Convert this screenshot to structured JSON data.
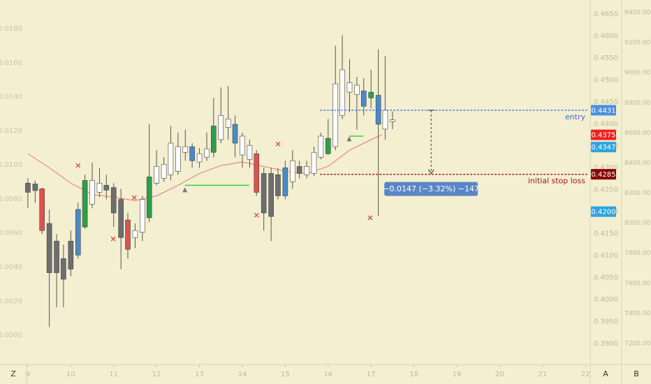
{
  "chart_data": {
    "type": "candlestick",
    "x": [
      9,
      9.17,
      9.33,
      9.5,
      9.67,
      9.83,
      10,
      10.17,
      10.33,
      10.5,
      10.67,
      10.83,
      11,
      11.17,
      11.33,
      11.5,
      11.67,
      11.83,
      12,
      12.17,
      12.33,
      12.5,
      12.67,
      12.83,
      13,
      13.17,
      13.33,
      13.5,
      13.67,
      13.83,
      14,
      14.17,
      14.33,
      14.5,
      14.67,
      14.83,
      15,
      15.17,
      15.33,
      15.5,
      15.67,
      15.83,
      16,
      16.17,
      16.33,
      16.5,
      16.67,
      16.83,
      17,
      17.17,
      17.33,
      17.5
    ],
    "open": [
      0.4265,
      0.4263,
      0.4252,
      0.4173,
      0.4133,
      0.4093,
      0.4133,
      0.4101,
      0.4165,
      0.4217,
      0.4244,
      0.426,
      0.4255,
      0.4228,
      0.4181,
      0.4141,
      0.4153,
      0.4186,
      0.4265,
      0.4276,
      0.4284,
      0.4292,
      0.4335,
      0.4348,
      0.4313,
      0.4324,
      0.4335,
      0.4364,
      0.4392,
      0.4399,
      0.4329,
      0.4319,
      0.4332,
      0.4287,
      0.4287,
      0.4284,
      0.4236,
      0.4268,
      0.4303,
      0.4284,
      0.4287,
      0.4324,
      0.4332,
      0.4348,
      0.4419,
      0.4472,
      0.4467,
      0.4475,
      0.4459,
      0.4465,
      0.4388,
      0.4405
    ],
    "high": [
      0.4276,
      0.4271,
      0.4255,
      0.4205,
      0.4149,
      0.4125,
      0.4157,
      0.422,
      0.4284,
      0.4312,
      0.43,
      0.4284,
      0.4265,
      0.4252,
      0.4197,
      0.4173,
      0.4236,
      0.4399,
      0.434,
      0.4324,
      0.4395,
      0.438,
      0.4387,
      0.4356,
      0.4345,
      0.438,
      0.4459,
      0.4483,
      0.4486,
      0.4419,
      0.438,
      0.4364,
      0.434,
      0.43,
      0.43,
      0.43,
      0.4316,
      0.434,
      0.4316,
      0.4316,
      0.4348,
      0.438,
      0.4411,
      0.4578,
      0.4602,
      0.4547,
      0.4507,
      0.4504,
      0.4523,
      0.457,
      0.4554,
      0.4428
    ],
    "low": [
      0.4208,
      0.422,
      0.4149,
      0.3937,
      0.3982,
      0.3982,
      0.4053,
      0.4093,
      0.4161,
      0.4208,
      0.4233,
      0.4228,
      0.4165,
      0.4069,
      0.4093,
      0.4117,
      0.4133,
      0.4176,
      0.426,
      0.4268,
      0.4271,
      0.4284,
      0.4316,
      0.43,
      0.43,
      0.4316,
      0.4324,
      0.4356,
      0.4364,
      0.4324,
      0.43,
      0.43,
      0.4236,
      0.4157,
      0.4133,
      0.4228,
      0.4228,
      0.4252,
      0.4276,
      0.4276,
      0.4281,
      0.4319,
      0.4329,
      0.434,
      0.4411,
      0.4427,
      0.4387,
      0.4419,
      0.4435,
      0.4189,
      0.4364,
      0.4388
    ],
    "close": [
      0.4244,
      0.4248,
      0.4157,
      0.4061,
      0.4061,
      0.4046,
      0.4069,
      0.4205,
      0.4271,
      0.4271,
      0.4265,
      0.4249,
      0.4197,
      0.4141,
      0.4114,
      0.4157,
      0.4228,
      0.4279,
      0.4303,
      0.4308,
      0.4356,
      0.4348,
      0.4348,
      0.4316,
      0.4332,
      0.4343,
      0.4395,
      0.4419,
      0.4411,
      0.4356,
      0.4372,
      0.4351,
      0.4244,
      0.4197,
      0.4189,
      0.4236,
      0.43,
      0.4316,
      0.4287,
      0.4303,
      0.4335,
      0.4372,
      0.4367,
      0.4491,
      0.4523,
      0.4494,
      0.4488,
      0.444,
      0.4472,
      0.4399,
      0.4431,
      0.4409
    ],
    "candle_colors": [
      "#6e6e6e",
      "#6e6e6e",
      "#d9534f",
      "#6e6e6e",
      "#6e6e6e",
      "#6e6e6e",
      "#6e6e6e",
      "#4a8ac9",
      "#2e9e4b",
      "#ffffff",
      "#ffffff",
      "#6e6e6e",
      "#6e6e6e",
      "#6e6e6e",
      "#d9534f",
      "#ffffff",
      "#ffffff",
      "#2e9e4b",
      "#ffffff",
      "#ffffff",
      "#ffffff",
      "#ffffff",
      "#ffffff",
      "#4a8ac9",
      "#ffffff",
      "#ffffff",
      "#2e9e4b",
      "#ffffff",
      "#ffffff",
      "#4a8ac9",
      "#ffffff",
      "#ffffff",
      "#d9534f",
      "#6e6e6e",
      "#6e6e6e",
      "#6e6e6e",
      "#4a8ac9",
      "#ffffff",
      "#6e6e6e",
      "#ffffff",
      "#ffffff",
      "#ffffff",
      "#2e9e4b",
      "#ffffff",
      "#ffffff",
      "#ffffff",
      "#ffffff",
      "#4a8ac9",
      "#2e9e4b",
      "#4a8ac9",
      "#ffffff",
      "#ffffff"
    ],
    "xlim": [
      8.35,
      22.11
    ],
    "xticks": [
      9,
      10,
      11,
      12,
      13,
      14,
      15,
      16,
      17,
      18,
      19,
      20,
      21,
      22
    ],
    "ylim": [
      0.3852,
      0.4682
    ],
    "yticks": [
      {
        "value": 0.39,
        "label": "0.3900"
      },
      {
        "value": 0.395,
        "label": "0.3950"
      },
      {
        "value": 0.4,
        "label": "0.4000"
      },
      {
        "value": 0.405,
        "label": "0.4050"
      },
      {
        "value": 0.41,
        "label": "0.4100"
      },
      {
        "value": 0.415,
        "label": "0.4150"
      },
      {
        "value": 0.42,
        "label": "0.4200"
      },
      {
        "value": 0.425,
        "label": "0.4250"
      },
      {
        "value": 0.43,
        "label": "0.4300"
      },
      {
        "value": 0.435,
        "label": "0.4350"
      },
      {
        "value": 0.44,
        "label": "0.4400"
      },
      {
        "value": 0.445,
        "label": "0.4450"
      },
      {
        "value": 0.45,
        "label": "0.4500"
      },
      {
        "value": 0.455,
        "label": "0.4550"
      },
      {
        "value": 0.46,
        "label": "0.4600"
      },
      {
        "value": 0.465,
        "label": "0.4650"
      }
    ],
    "y2lim": [
      -0.00172,
      0.01968
    ],
    "y2ticks": [
      {
        "value": 0,
        "label": "0.0000"
      },
      {
        "value": 0.002,
        "label": "0.0020"
      },
      {
        "value": 0.004,
        "label": "0.0040"
      },
      {
        "value": 0.006,
        "label": "0.0060"
      },
      {
        "value": 0.008,
        "label": "0.0080"
      },
      {
        "value": 0.01,
        "label": "0.0100"
      },
      {
        "value": 0.012,
        "label": "0.0120"
      },
      {
        "value": 0.014,
        "label": "0.0140"
      },
      {
        "value": 0.016,
        "label": "0.0160"
      },
      {
        "value": 0.018,
        "label": "0.0180"
      }
    ],
    "y3lim": [
      7060.8,
      9483.5
    ],
    "y3ticks": [
      {
        "value": 7200,
        "label": "7200.00"
      },
      {
        "value": 7400,
        "label": "7400.00"
      },
      {
        "value": 7600,
        "label": "7600.00"
      },
      {
        "value": 7800,
        "label": "7800.00"
      },
      {
        "value": 8000,
        "label": "8000.00"
      },
      {
        "value": 8200,
        "label": "8200.00"
      },
      {
        "value": 8400,
        "label": "8400.00"
      },
      {
        "value": 8600,
        "label": "8600.00"
      },
      {
        "value": 8800,
        "label": "8800.00"
      },
      {
        "value": 9000,
        "label": "9000.00"
      },
      {
        "value": 9200,
        "label": "9200.00"
      },
      {
        "value": 9400,
        "label": "9400.00"
      }
    ],
    "moving_average": {
      "color": "#e8776e",
      "x": [
        9,
        9.5,
        10,
        10.5,
        11,
        11.5,
        12,
        12.5,
        13,
        13.5,
        14,
        14.5,
        15,
        15.5,
        16,
        16.5,
        17,
        17.25
      ],
      "values": [
        0.4332,
        0.43,
        0.4265,
        0.4239,
        0.4233,
        0.4225,
        0.4236,
        0.426,
        0.4287,
        0.4305,
        0.4313,
        0.4303,
        0.4292,
        0.4287,
        0.4303,
        0.434,
        0.4364,
        0.4375
      ]
    },
    "markers": [
      {
        "shape": "cross",
        "x": 10.17,
        "value": 0.4305,
        "color": "#e04848"
      },
      {
        "shape": "cross",
        "x": 10.99,
        "value": 0.4138,
        "color": "#e04848"
      },
      {
        "shape": "cross",
        "x": 11.48,
        "value": 0.4232,
        "color": "#e04848"
      },
      {
        "shape": "cross",
        "x": 14.33,
        "value": 0.4192,
        "color": "#e04848"
      },
      {
        "shape": "cross",
        "x": 14.83,
        "value": 0.4354,
        "color": "#e04848"
      },
      {
        "shape": "cross",
        "x": 16.98,
        "value": 0.4186,
        "color": "#a05050"
      },
      {
        "shape": "triangle",
        "x": 12.66,
        "value": 0.4249,
        "color": "#777777"
      },
      {
        "shape": "triangle",
        "x": 16.49,
        "value": 0.4365,
        "color": "#777777"
      }
    ],
    "segments": [
      {
        "x": [
          12.66,
          14.16
        ],
        "value": 0.426,
        "color": "#37d437"
      },
      {
        "x": [
          16.49,
          16.82
        ],
        "value": 0.4372,
        "color": "#37d437"
      }
    ],
    "levels": [
      {
        "name": "entry",
        "value": 0.4431,
        "x": 15.81,
        "color": "#3d6fd9"
      },
      {
        "name": "initial stop loss",
        "value": 0.4285,
        "x": 15.81,
        "color": "#a01818"
      }
    ],
    "price_tags": [
      {
        "value": 0.4431,
        "color": "#4a8fe0"
      },
      {
        "value": 0.4375,
        "color": "#f21f1f"
      },
      {
        "value": 0.4347,
        "color": "#2fa3e0"
      },
      {
        "value": 0.4285,
        "color": "#8b0000"
      },
      {
        "value": 0.42,
        "label": "0.4200",
        "color": "#2fa3e0"
      }
    ],
    "measure": {
      "x": 18.4,
      "from": 0.4431,
      "to": 0.4285,
      "label": "−0.0147 (−3.32%) −147",
      "color": "#5b86c4"
    },
    "footer": [
      "Z",
      "A",
      "B"
    ]
  }
}
